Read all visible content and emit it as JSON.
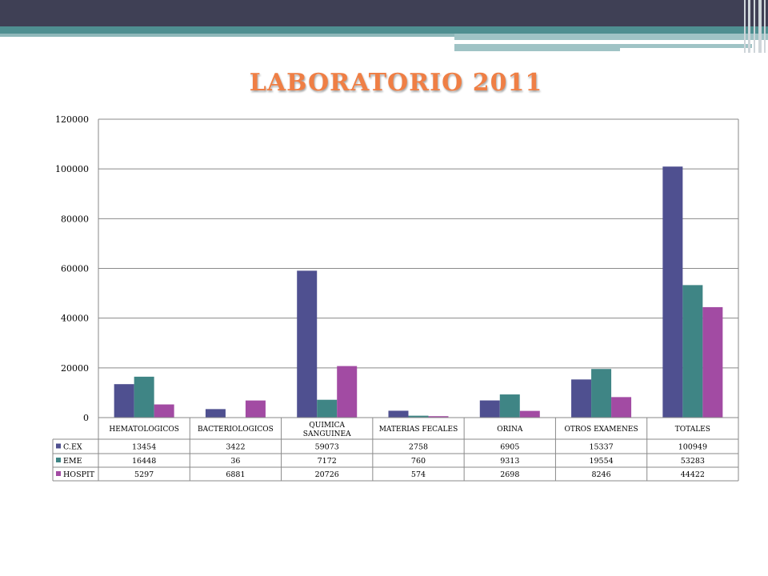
{
  "slide": {
    "title": "LABORATORIO 2011"
  },
  "colors": {
    "cex": "#4f5090",
    "eme": "#3f8585",
    "hospit": "#a24ba3",
    "title": "#ef7f45",
    "header_dark": "#3f4055",
    "header_teal": "#4f8f91"
  },
  "chart_data": {
    "type": "bar",
    "title": "",
    "xlabel": "",
    "ylabel": "",
    "ylim": [
      0,
      120000
    ],
    "yticks": [
      "0",
      "20000",
      "40000",
      "60000",
      "80000",
      "100000",
      "120000"
    ],
    "grid": true,
    "legend": "data-table",
    "categories": [
      "HEMATOLOGICOS",
      "BACTERIOLOGICOS",
      "QUIMICA SANGUINEA",
      "MATERIAS FECALES",
      "ORINA",
      "OTROS EXAMENES",
      "TOTALES"
    ],
    "series": [
      {
        "name": "C.EX",
        "color": "#4f5090",
        "values": [
          13454,
          3422,
          59073,
          2758,
          6905,
          15337,
          100949
        ]
      },
      {
        "name": "EME",
        "color": "#3f8585",
        "values": [
          16448,
          36,
          7172,
          760,
          9313,
          19554,
          53283
        ]
      },
      {
        "name": "HOSPIT",
        "color": "#a24ba3",
        "values": [
          5297,
          6881,
          20726,
          574,
          2698,
          8246,
          44422
        ]
      }
    ]
  }
}
